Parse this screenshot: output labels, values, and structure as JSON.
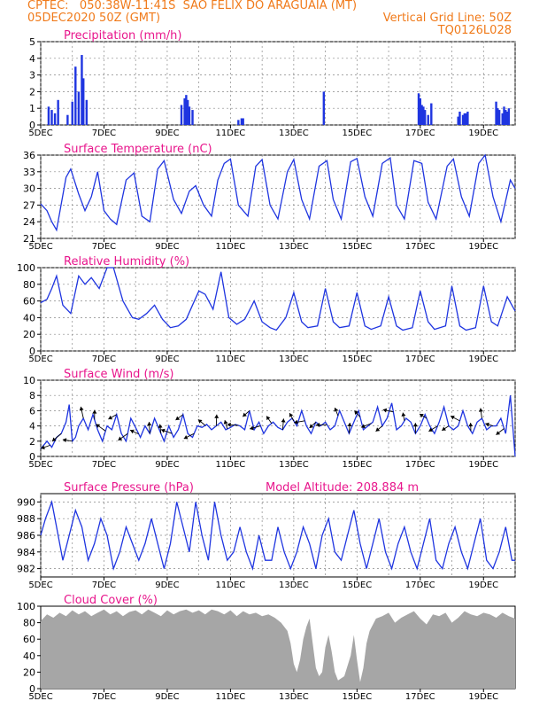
{
  "header": {
    "line1_left": "CPTEC:   050:38W-11:41S  SAO FELIX DO ARAGUAIA (MT)",
    "line2_left": "05DEC2020 50Z (GMT)",
    "line2_right": "Vertical Grid Line: 50Z",
    "line3_right": "TQ0126L028"
  },
  "colors": {
    "header": "#f07a1a",
    "title": "#e8168c",
    "series": "#1f35e0",
    "cloud": "#a6a6a6",
    "grid": "#888888"
  },
  "x_ticks": [
    "5DEC",
    "7DEC",
    "9DEC",
    "11DEC",
    "13DEC",
    "15DEC",
    "17DEC",
    "19DEC"
  ],
  "chart_data": [
    {
      "id": "precip",
      "type": "bar",
      "title": "Precipitation (mm/h)",
      "ylim": [
        0,
        5
      ],
      "yticks": [
        "0",
        "1",
        "2",
        "3",
        "4",
        "5"
      ],
      "grid": true,
      "series": [
        {
          "x": [
            5.25,
            5.35,
            5.45,
            5.55,
            5.85,
            6.0,
            6.1,
            6.2,
            6.3,
            6.35,
            6.45,
            9.45,
            9.55,
            9.6,
            9.65,
            9.7,
            9.8,
            11.25,
            11.35,
            11.4,
            13.95,
            16.95,
            17.0,
            17.05,
            17.1,
            17.15,
            17.25,
            17.35,
            18.2,
            18.25,
            18.35,
            18.4,
            18.45,
            18.5,
            19.4,
            19.45,
            19.5,
            19.6,
            19.65,
            19.7,
            19.75,
            19.8
          ],
          "y": [
            1.1,
            0.9,
            0.7,
            1.5,
            0.6,
            1.4,
            3.5,
            2.0,
            4.2,
            2.8,
            1.5,
            1.2,
            1.6,
            1.8,
            1.5,
            1.1,
            0.9,
            0.3,
            0.4,
            0.4,
            2.0,
            1.9,
            1.6,
            1.2,
            1.1,
            0.9,
            0.6,
            1.3,
            0.5,
            0.8,
            0.6,
            0.7,
            0.7,
            0.8,
            1.4,
            1.0,
            0.9,
            0.7,
            1.1,
            0.9,
            0.8,
            1.0
          ]
        }
      ]
    },
    {
      "id": "temp",
      "type": "line",
      "title": "Surface Temperature (nC)",
      "ylim": [
        21,
        36
      ],
      "yticks": [
        "21",
        "24",
        "27",
        "30",
        "33",
        "36"
      ],
      "grid": true,
      "series": [
        {
          "x": [
            5.0,
            5.2,
            5.35,
            5.5,
            5.8,
            5.95,
            6.2,
            6.4,
            6.6,
            6.8,
            7.0,
            7.2,
            7.4,
            7.7,
            7.95,
            8.2,
            8.45,
            8.7,
            8.9,
            9.2,
            9.45,
            9.7,
            9.9,
            10.15,
            10.4,
            10.6,
            10.8,
            11.0,
            11.25,
            11.55,
            11.8,
            12.0,
            12.25,
            12.5,
            12.8,
            13.0,
            13.25,
            13.5,
            13.8,
            14.05,
            14.25,
            14.5,
            14.8,
            15.0,
            15.25,
            15.5,
            15.8,
            16.05,
            16.25,
            16.5,
            16.8,
            17.05,
            17.25,
            17.5,
            17.85,
            18.05,
            18.3,
            18.55,
            18.85,
            19.05,
            19.3,
            19.55,
            19.85,
            20.0
          ],
          "y": [
            27.2,
            26,
            24,
            22.5,
            32.0,
            33.5,
            29.0,
            26.0,
            28.5,
            33.0,
            26.0,
            24.5,
            23.5,
            31.5,
            32.8,
            25.0,
            24.0,
            33.5,
            35.0,
            28.0,
            25.5,
            29.5,
            30.5,
            27.0,
            25.0,
            31.5,
            34.5,
            35.3,
            27.0,
            25.0,
            34.0,
            35.2,
            27.0,
            24.5,
            33.0,
            35.2,
            28.0,
            24.5,
            34.0,
            35.0,
            28.0,
            24.5,
            34.8,
            35.4,
            28.5,
            25.0,
            34.5,
            35.5,
            27.0,
            24.5,
            35.0,
            34.5,
            27.5,
            24.5,
            34.0,
            35.3,
            28.5,
            25.0,
            34.5,
            36.0,
            28.5,
            24.0,
            31.5,
            30.0
          ]
        }
      ]
    },
    {
      "id": "rh",
      "type": "line",
      "title": "Relative Humidity (%)",
      "ylim": [
        0,
        100
      ],
      "yticks": [
        "0",
        "20",
        "40",
        "60",
        "80",
        "100"
      ],
      "grid": true,
      "series": [
        {
          "x": [
            5.0,
            5.2,
            5.35,
            5.5,
            5.7,
            5.95,
            6.2,
            6.4,
            6.6,
            6.85,
            7.1,
            7.3,
            7.6,
            7.9,
            8.1,
            8.35,
            8.6,
            8.85,
            9.1,
            9.35,
            9.6,
            9.8,
            10.0,
            10.2,
            10.45,
            10.7,
            10.95,
            11.2,
            11.45,
            11.75,
            12.0,
            12.25,
            12.45,
            12.75,
            13.0,
            13.25,
            13.45,
            13.75,
            14.0,
            14.25,
            14.45,
            14.75,
            15.0,
            15.25,
            15.45,
            15.75,
            16.0,
            16.25,
            16.45,
            16.75,
            17.0,
            17.25,
            17.45,
            17.8,
            18.0,
            18.25,
            18.45,
            18.75,
            19.0,
            19.25,
            19.45,
            19.75,
            20.0
          ],
          "y": [
            58,
            62,
            75,
            90,
            55,
            45,
            90,
            80,
            88,
            75,
            100,
            100,
            60,
            40,
            38,
            45,
            55,
            38,
            28,
            30,
            38,
            55,
            72,
            68,
            50,
            95,
            40,
            32,
            38,
            60,
            35,
            28,
            25,
            40,
            70,
            35,
            28,
            30,
            75,
            35,
            28,
            30,
            70,
            30,
            26,
            30,
            65,
            30,
            25,
            28,
            72,
            35,
            26,
            30,
            78,
            30,
            25,
            28,
            78,
            35,
            30,
            65,
            48
          ]
        }
      ]
    },
    {
      "id": "wind",
      "type": "line",
      "title": "Surface Wind (m/s)",
      "ylim": [
        0,
        10
      ],
      "yticks": [
        "0",
        "2",
        "4",
        "6",
        "8",
        "10"
      ],
      "grid": true,
      "series": [
        {
          "x": [
            5.0,
            5.1,
            5.2,
            5.35,
            5.5,
            5.65,
            5.8,
            5.9,
            6.0,
            6.1,
            6.2,
            6.35,
            6.5,
            6.65,
            6.8,
            6.95,
            7.1,
            7.25,
            7.4,
            7.55,
            7.7,
            7.85,
            8.0,
            8.15,
            8.3,
            8.45,
            8.6,
            8.75,
            8.9,
            9.05,
            9.2,
            9.35,
            9.5,
            9.65,
            9.8,
            9.95,
            10.1,
            10.25,
            10.4,
            10.55,
            10.7,
            10.85,
            11.0,
            11.15,
            11.3,
            11.45,
            11.6,
            11.75,
            11.9,
            12.05,
            12.2,
            12.35,
            12.5,
            12.65,
            12.8,
            12.95,
            13.1,
            13.25,
            13.4,
            13.55,
            13.7,
            13.85,
            14.0,
            14.15,
            14.3,
            14.45,
            14.6,
            14.75,
            14.9,
            15.05,
            15.2,
            15.35,
            15.5,
            15.65,
            15.8,
            15.95,
            16.1,
            16.25,
            16.4,
            16.55,
            16.7,
            16.85,
            17.0,
            17.15,
            17.3,
            17.45,
            17.6,
            17.75,
            17.9,
            18.05,
            18.2,
            18.35,
            18.5,
            18.65,
            18.8,
            18.95,
            19.1,
            19.25,
            19.4,
            19.55,
            19.7,
            19.85,
            20.0
          ],
          "y": [
            1.0,
            1.5,
            2.0,
            1.2,
            2.5,
            3.0,
            4.5,
            6.8,
            2.0,
            2.5,
            4.0,
            5.0,
            3.5,
            5.5,
            3.5,
            2.0,
            4.0,
            3.5,
            5.5,
            3.0,
            2.0,
            5.0,
            3.8,
            2.5,
            4.0,
            3.0,
            5.0,
            3.5,
            2.0,
            4.0,
            2.5,
            3.5,
            5.5,
            3.0,
            2.5,
            4.0,
            3.8,
            4.2,
            3.5,
            4.0,
            4.5,
            3.5,
            3.8,
            4.2,
            4.0,
            3.5,
            6.0,
            3.5,
            4.5,
            3.0,
            4.0,
            4.5,
            3.8,
            3.5,
            4.5,
            5.0,
            4.0,
            6.0,
            4.0,
            3.0,
            4.5,
            4.0,
            4.5,
            3.5,
            4.0,
            6.0,
            4.5,
            3.0,
            4.5,
            6.0,
            3.5,
            4.0,
            4.5,
            6.5,
            4.0,
            5.0,
            7.0,
            3.5,
            4.0,
            5.0,
            4.5,
            3.0,
            4.0,
            5.5,
            4.0,
            3.0,
            4.5,
            6.5,
            4.0,
            3.5,
            4.0,
            6.0,
            4.0,
            3.0,
            4.5,
            5.0,
            3.5,
            4.0,
            4.0,
            5.0,
            3.0,
            8.0,
            0.0
          ]
        }
      ]
    },
    {
      "id": "pres",
      "type": "line",
      "title": "Surface Pressure (hPa)",
      "annotation": "Model Altitude: 208.884  m",
      "ylim": [
        981,
        991
      ],
      "yticks": [
        "982",
        "984",
        "986",
        "988",
        "990"
      ],
      "grid": true,
      "series": [
        {
          "x": [
            5.0,
            5.15,
            5.35,
            5.5,
            5.7,
            5.9,
            6.1,
            6.3,
            6.5,
            6.7,
            6.9,
            7.1,
            7.3,
            7.5,
            7.7,
            7.9,
            8.1,
            8.3,
            8.5,
            8.7,
            8.9,
            9.1,
            9.3,
            9.5,
            9.7,
            9.9,
            10.1,
            10.3,
            10.5,
            10.7,
            10.9,
            11.1,
            11.3,
            11.5,
            11.7,
            11.9,
            12.1,
            12.3,
            12.5,
            12.7,
            12.9,
            13.1,
            13.3,
            13.5,
            13.7,
            13.9,
            14.1,
            14.3,
            14.5,
            14.7,
            14.9,
            15.1,
            15.3,
            15.5,
            15.7,
            15.9,
            16.1,
            16.3,
            16.5,
            16.7,
            16.9,
            17.1,
            17.3,
            17.5,
            17.7,
            17.9,
            18.1,
            18.3,
            18.5,
            18.7,
            18.9,
            19.1,
            19.3,
            19.5,
            19.7,
            19.9,
            20.0
          ],
          "y": [
            986,
            988,
            990,
            987,
            983,
            986,
            989,
            987,
            983,
            985,
            988,
            986,
            982,
            984,
            987,
            985,
            983,
            985,
            988,
            985,
            982,
            985,
            990,
            987,
            984,
            990,
            986,
            983,
            990,
            986,
            983,
            984,
            987,
            984,
            982,
            986,
            983,
            983,
            987,
            984,
            982,
            984,
            987,
            985,
            982,
            986,
            988,
            984,
            983,
            986,
            989,
            985,
            982,
            985,
            988,
            984,
            982,
            985,
            987,
            984,
            982,
            985,
            988,
            983,
            982,
            985,
            987,
            984,
            982,
            985,
            988,
            983,
            982,
            984,
            987,
            983,
            983
          ]
        }
      ]
    },
    {
      "id": "cloud",
      "type": "area",
      "title": "Cloud Cover (%)",
      "ylim": [
        0,
        100
      ],
      "yticks": [
        "0",
        "20",
        "40",
        "60",
        "80",
        "100"
      ],
      "grid": false,
      "series": [
        {
          "x": [
            5.0,
            5.2,
            5.4,
            5.6,
            5.8,
            6.0,
            6.2,
            6.4,
            6.6,
            6.8,
            7.0,
            7.2,
            7.4,
            7.6,
            7.8,
            8.0,
            8.2,
            8.4,
            8.6,
            8.8,
            9.0,
            9.2,
            9.4,
            9.6,
            9.8,
            10.0,
            10.2,
            10.4,
            10.6,
            10.8,
            11.0,
            11.2,
            11.4,
            11.6,
            11.8,
            12.0,
            12.2,
            12.4,
            12.6,
            12.8,
            12.9,
            13.0,
            13.1,
            13.2,
            13.3,
            13.4,
            13.5,
            13.6,
            13.7,
            13.8,
            13.9,
            14.0,
            14.1,
            14.2,
            14.3,
            14.4,
            14.6,
            14.8,
            14.9,
            15.0,
            15.1,
            15.2,
            15.3,
            15.4,
            15.6,
            15.8,
            16.0,
            16.2,
            16.4,
            16.6,
            16.8,
            17.0,
            17.2,
            17.4,
            17.6,
            17.8,
            18.0,
            18.2,
            18.4,
            18.6,
            18.8,
            19.0,
            19.2,
            19.4,
            19.6,
            19.8,
            20.0
          ],
          "y": [
            82,
            90,
            86,
            92,
            88,
            95,
            90,
            94,
            88,
            92,
            96,
            90,
            94,
            88,
            93,
            95,
            90,
            96,
            92,
            88,
            95,
            90,
            94,
            96,
            92,
            95,
            90,
            96,
            94,
            90,
            95,
            88,
            94,
            90,
            92,
            88,
            90,
            86,
            80,
            70,
            55,
            30,
            20,
            35,
            60,
            75,
            85,
            55,
            25,
            15,
            20,
            50,
            65,
            45,
            20,
            10,
            15,
            40,
            65,
            35,
            8,
            25,
            55,
            70,
            85,
            88,
            92,
            80,
            86,
            90,
            94,
            85,
            78,
            90,
            88,
            92,
            80,
            86,
            94,
            90,
            88,
            92,
            90,
            86,
            92,
            88,
            85
          ]
        }
      ]
    }
  ]
}
